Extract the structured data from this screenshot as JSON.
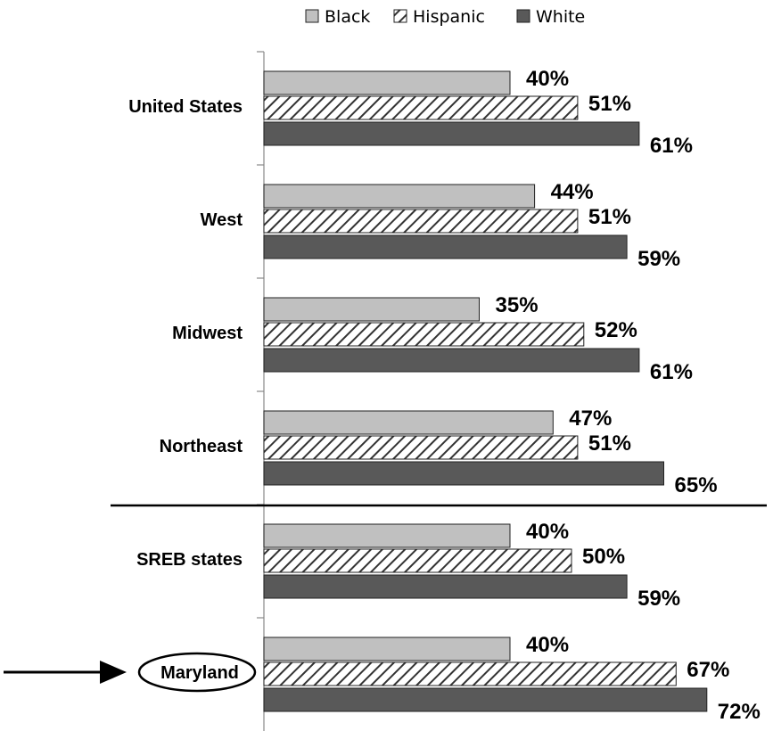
{
  "chart_data": {
    "type": "bar",
    "orientation": "horizontal",
    "categories": [
      "United States",
      "West",
      "Midwest",
      "Northeast",
      "SREB states",
      "Maryland"
    ],
    "highlighted_category": "Maryland",
    "value_suffix": "%",
    "series": [
      {
        "name": "Black",
        "values": [
          40,
          44,
          35,
          47,
          40,
          40
        ],
        "color": "#c0c0c0",
        "pattern": "solid"
      },
      {
        "name": "Hispanic",
        "values": [
          51,
          51,
          52,
          51,
          50,
          67
        ],
        "color": "#ffffff",
        "pattern": "diagonal-hatch"
      },
      {
        "name": "White",
        "values": [
          61,
          59,
          61,
          65,
          59,
          72
        ],
        "color": "#595959",
        "pattern": "solid"
      }
    ],
    "legend_position": "top",
    "grid": false,
    "separator_after_category": "Northeast"
  }
}
